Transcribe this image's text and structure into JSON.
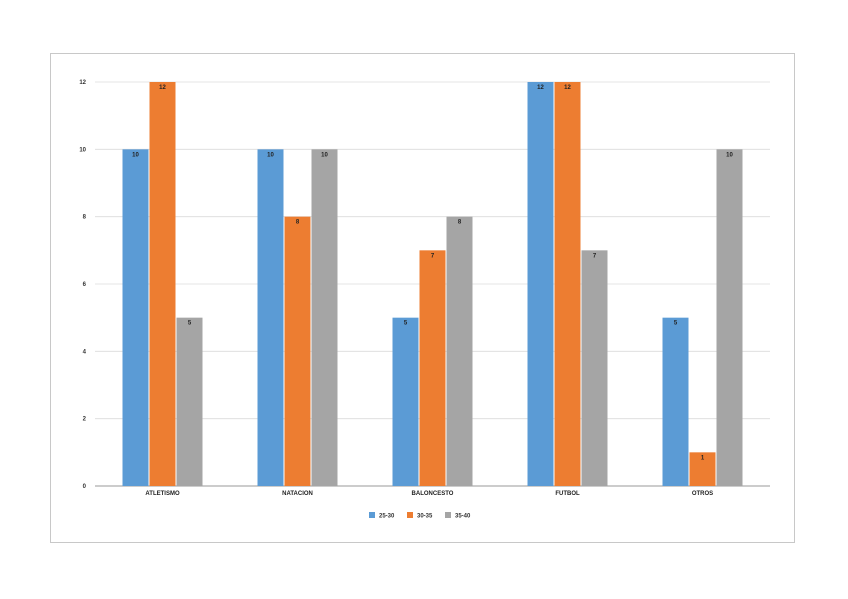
{
  "chart_data": {
    "type": "bar",
    "categories": [
      "ATLETISMO",
      "NATACION",
      "BALONCESTO",
      "FUTBOL",
      "OTROS"
    ],
    "series": [
      {
        "name": "25-30",
        "color": "#5b9bd5",
        "values": [
          10,
          10,
          5,
          12,
          5
        ]
      },
      {
        "name": "30-35",
        "color": "#ed7d31",
        "values": [
          12,
          8,
          7,
          12,
          1
        ]
      },
      {
        "name": "35-40",
        "color": "#a5a5a5",
        "values": [
          5,
          10,
          8,
          7,
          10
        ]
      }
    ],
    "ylim": [
      0,
      12
    ],
    "yticks": [
      0,
      2,
      4,
      6,
      8,
      10,
      12
    ],
    "grid": true,
    "legend": "bottom",
    "title": "",
    "xlabel": "",
    "ylabel": ""
  }
}
